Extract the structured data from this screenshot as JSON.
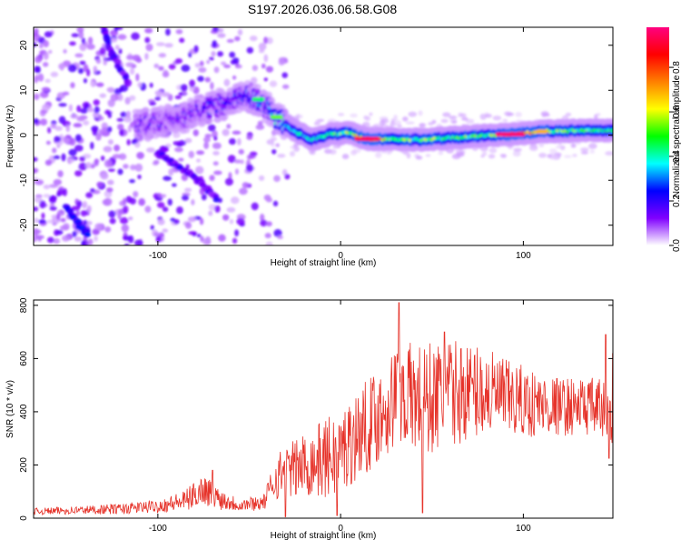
{
  "title": "S197.2026.036.06.58.G08",
  "chart_data": [
    {
      "type": "heatmap",
      "xlabel": "Height of straight line (km)",
      "ylabel": "Frequency (Hz)",
      "xlim": [
        -168,
        149
      ],
      "ylim": [
        -24.5,
        24
      ],
      "xticks": [
        -100,
        0,
        100
      ],
      "yticks": [
        -20,
        -10,
        0,
        10,
        20
      ],
      "colorbar": {
        "label": "Normalized spectral amplitude",
        "range": [
          0,
          0.98
        ],
        "ticks": [
          0,
          0.2,
          0.4,
          0.6,
          0.8
        ],
        "colors": [
          "#ffffff",
          "#8000ff",
          "#0000ff",
          "#00ffff",
          "#00ff00",
          "#ffff00",
          "#ff8000",
          "#ff0000",
          "#ff0080"
        ]
      },
      "ridge": [
        {
          "x": -112,
          "y": 2,
          "amp": 0.2
        },
        {
          "x": -95,
          "y": 3,
          "amp": 0.18
        },
        {
          "x": -80,
          "y": 5,
          "amp": 0.2
        },
        {
          "x": -65,
          "y": 7,
          "amp": 0.25
        },
        {
          "x": -50,
          "y": 9,
          "amp": 0.3
        },
        {
          "x": -40,
          "y": 6,
          "amp": 0.35
        },
        {
          "x": -35,
          "y": 4,
          "amp": 0.4
        },
        {
          "x": -25,
          "y": 1,
          "amp": 0.45
        },
        {
          "x": -15,
          "y": -1,
          "amp": 0.45
        },
        {
          "x": -5,
          "y": 0.3,
          "amp": 0.5
        },
        {
          "x": 5,
          "y": 0.5,
          "amp": 0.6
        },
        {
          "x": 15,
          "y": -0.8,
          "amp": 0.95
        },
        {
          "x": 30,
          "y": -1,
          "amp": 0.55
        },
        {
          "x": 45,
          "y": -1,
          "amp": 0.6
        },
        {
          "x": 60,
          "y": -0.6,
          "amp": 0.55
        },
        {
          "x": 75,
          "y": -0.2,
          "amp": 0.55
        },
        {
          "x": 85,
          "y": 0,
          "amp": 0.6
        },
        {
          "x": 95,
          "y": 0.2,
          "amp": 0.95
        },
        {
          "x": 110,
          "y": 0.8,
          "amp": 0.65
        },
        {
          "x": 125,
          "y": 1,
          "amp": 0.55
        },
        {
          "x": 140,
          "y": 1,
          "amp": 0.55
        },
        {
          "x": 149,
          "y": 1,
          "amp": 0.5
        }
      ],
      "branches": [
        {
          "points": [
            [
              -130,
              24
            ],
            [
              -125,
              18
            ],
            [
              -118,
              13
            ]
          ],
          "amp": 0.2
        },
        {
          "points": [
            [
              -150,
              -16
            ],
            [
              -143,
              -20
            ],
            [
              -138,
              -22
            ]
          ],
          "amp": 0.25
        },
        {
          "points": [
            [
              -100,
              -4
            ],
            [
              -88,
              -7
            ],
            [
              -78,
              -10
            ],
            [
              -68,
              -14
            ]
          ],
          "amp": 0.2
        }
      ]
    },
    {
      "type": "line",
      "xlabel": "Height of straight line (km)",
      "ylabel": "SNR (10 * v/v)",
      "xlim": [
        -168,
        149
      ],
      "ylim": [
        0,
        820
      ],
      "xticks": [
        -100,
        0,
        100
      ],
      "yticks": [
        0,
        200,
        400,
        600,
        800
      ],
      "color": "#e6332a",
      "envelope": [
        {
          "x": -168,
          "y": 25,
          "amp": 12
        },
        {
          "x": -120,
          "y": 35,
          "amp": 20
        },
        {
          "x": -100,
          "y": 45,
          "amp": 25
        },
        {
          "x": -85,
          "y": 65,
          "amp": 40
        },
        {
          "x": -75,
          "y": 110,
          "amp": 60
        },
        {
          "x": -65,
          "y": 70,
          "amp": 40
        },
        {
          "x": -55,
          "y": 50,
          "amp": 25
        },
        {
          "x": -42,
          "y": 60,
          "amp": 30
        },
        {
          "x": -35,
          "y": 160,
          "amp": 90
        },
        {
          "x": -20,
          "y": 200,
          "amp": 120
        },
        {
          "x": -10,
          "y": 220,
          "amp": 150
        },
        {
          "x": 0,
          "y": 250,
          "amp": 160
        },
        {
          "x": 10,
          "y": 320,
          "amp": 170
        },
        {
          "x": 20,
          "y": 380,
          "amp": 180
        },
        {
          "x": 32,
          "y": 470,
          "amp": 200
        },
        {
          "x": 45,
          "y": 440,
          "amp": 220
        },
        {
          "x": 60,
          "y": 470,
          "amp": 200
        },
        {
          "x": 75,
          "y": 480,
          "amp": 180
        },
        {
          "x": 90,
          "y": 450,
          "amp": 150
        },
        {
          "x": 105,
          "y": 430,
          "amp": 130
        },
        {
          "x": 120,
          "y": 420,
          "amp": 110
        },
        {
          "x": 135,
          "y": 420,
          "amp": 110
        },
        {
          "x": 149,
          "y": 400,
          "amp": 120
        }
      ],
      "peaks": [
        {
          "x": -70,
          "y": 180
        },
        {
          "x": 32,
          "y": 810
        },
        {
          "x": 57,
          "y": 700
        },
        {
          "x": 145,
          "y": 690
        },
        {
          "x": 149,
          "y": 620
        },
        {
          "x": 147,
          "y": 225
        },
        {
          "x": -30,
          "y": 5
        },
        {
          "x": 45,
          "y": 20
        },
        {
          "x": -2,
          "y": 10
        }
      ]
    }
  ]
}
